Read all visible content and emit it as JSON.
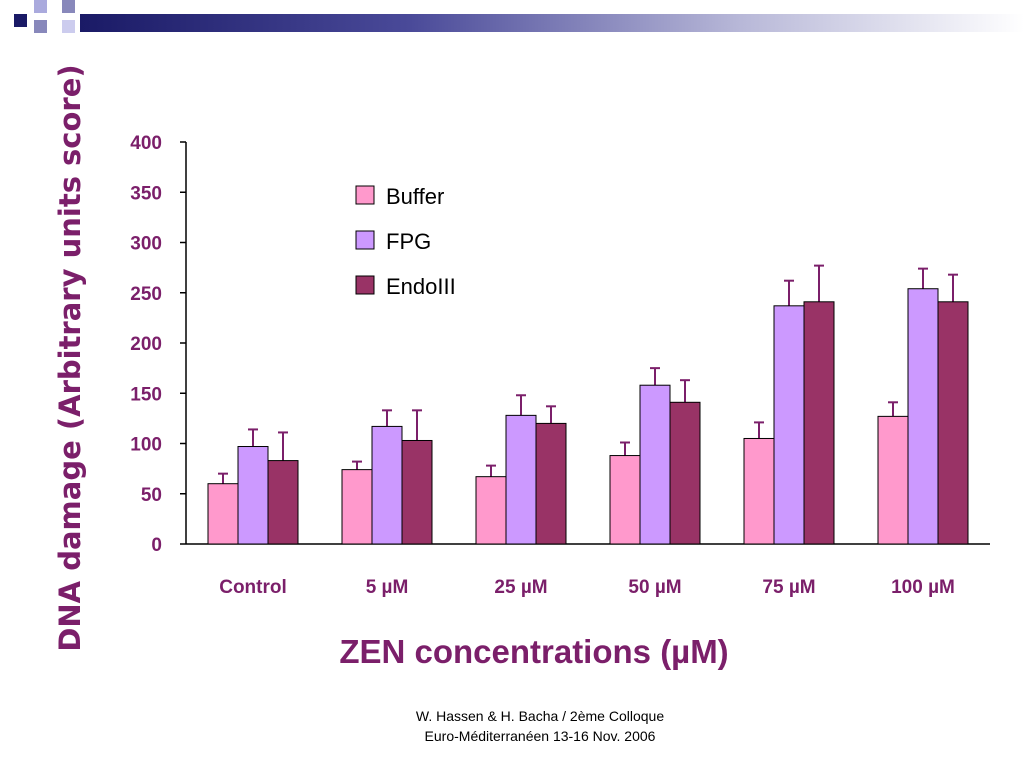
{
  "colors": {
    "accent": "#7b1f6a",
    "buffer": "#ff99cc",
    "fpg": "#cc99ff",
    "endo": "#993366",
    "header_dark": "#1a1a66",
    "header_mid": "#8888bb"
  },
  "chart_data": {
    "type": "bar",
    "xlabel": "ZEN concentrations (µM)",
    "ylabel": "DNA damage (Arbitrary units score)",
    "ylim": [
      0,
      400
    ],
    "yticks": [
      0,
      50,
      100,
      150,
      200,
      250,
      300,
      350,
      400
    ],
    "categories": [
      "Control",
      "5 µM",
      "25 µM",
      "50 µM",
      "75 µM",
      "100 µM"
    ],
    "series": [
      {
        "name": "Buffer",
        "values": [
          60,
          74,
          67,
          88,
          105,
          127
        ],
        "errors": [
          10,
          8,
          11,
          13,
          16,
          14
        ]
      },
      {
        "name": "FPG",
        "values": [
          97,
          117,
          128,
          158,
          237,
          254
        ],
        "errors": [
          17,
          16,
          20,
          17,
          25,
          20
        ]
      },
      {
        "name": "EndoIII",
        "values": [
          83,
          103,
          120,
          141,
          241,
          241
        ],
        "errors": [
          28,
          30,
          17,
          22,
          36,
          27
        ]
      }
    ],
    "legend_position": "top-left",
    "grid": false
  },
  "footer": {
    "line1": "W. Hassen & H. Bacha / 2ème Colloque",
    "line2": "Euro-Méditerranéen 13-16 Nov. 2006"
  }
}
